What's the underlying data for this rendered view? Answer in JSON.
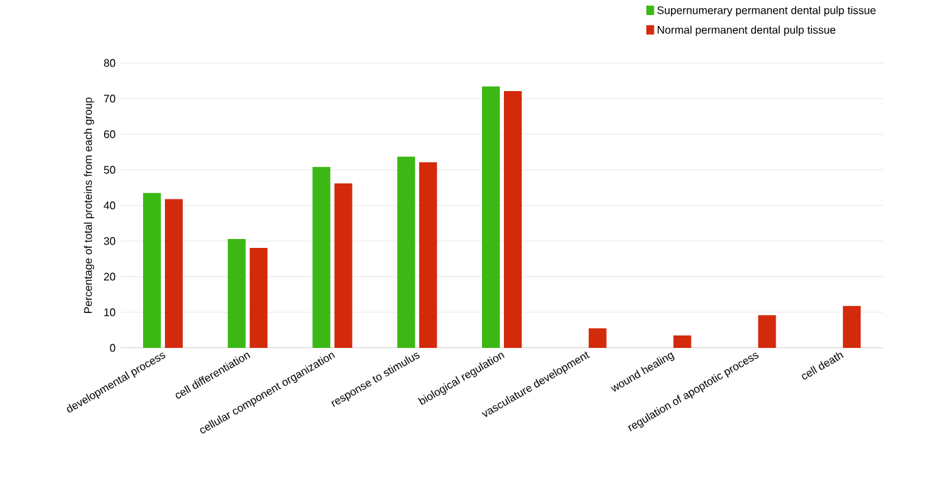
{
  "chart_data": {
    "type": "bar",
    "ylabel": "Percentage of total proteins from each group",
    "categories": [
      "developmental process",
      "cell differentiation",
      "cellular component organization",
      "response to stimulus",
      "biological regulation",
      "vasculature development",
      "wound healing",
      "regulation of apoptotic process",
      "cell death"
    ],
    "series": [
      {
        "name": "Supernumerary permanent dental pulp tissue",
        "color": "#3cb815",
        "values": [
          43.5,
          30.6,
          50.8,
          53.7,
          73.4,
          null,
          null,
          null,
          null
        ]
      },
      {
        "name": "Normal permanent dental pulp tissue",
        "color": "#d42a0c",
        "values": [
          41.8,
          28.1,
          46.2,
          52.1,
          72.1,
          5.5,
          3.5,
          9.2,
          11.8
        ]
      }
    ],
    "ylim": [
      0,
      80
    ],
    "yticks": [
      0,
      10,
      20,
      30,
      40,
      50,
      60,
      70,
      80
    ],
    "grid": "y",
    "legend": "top right"
  }
}
